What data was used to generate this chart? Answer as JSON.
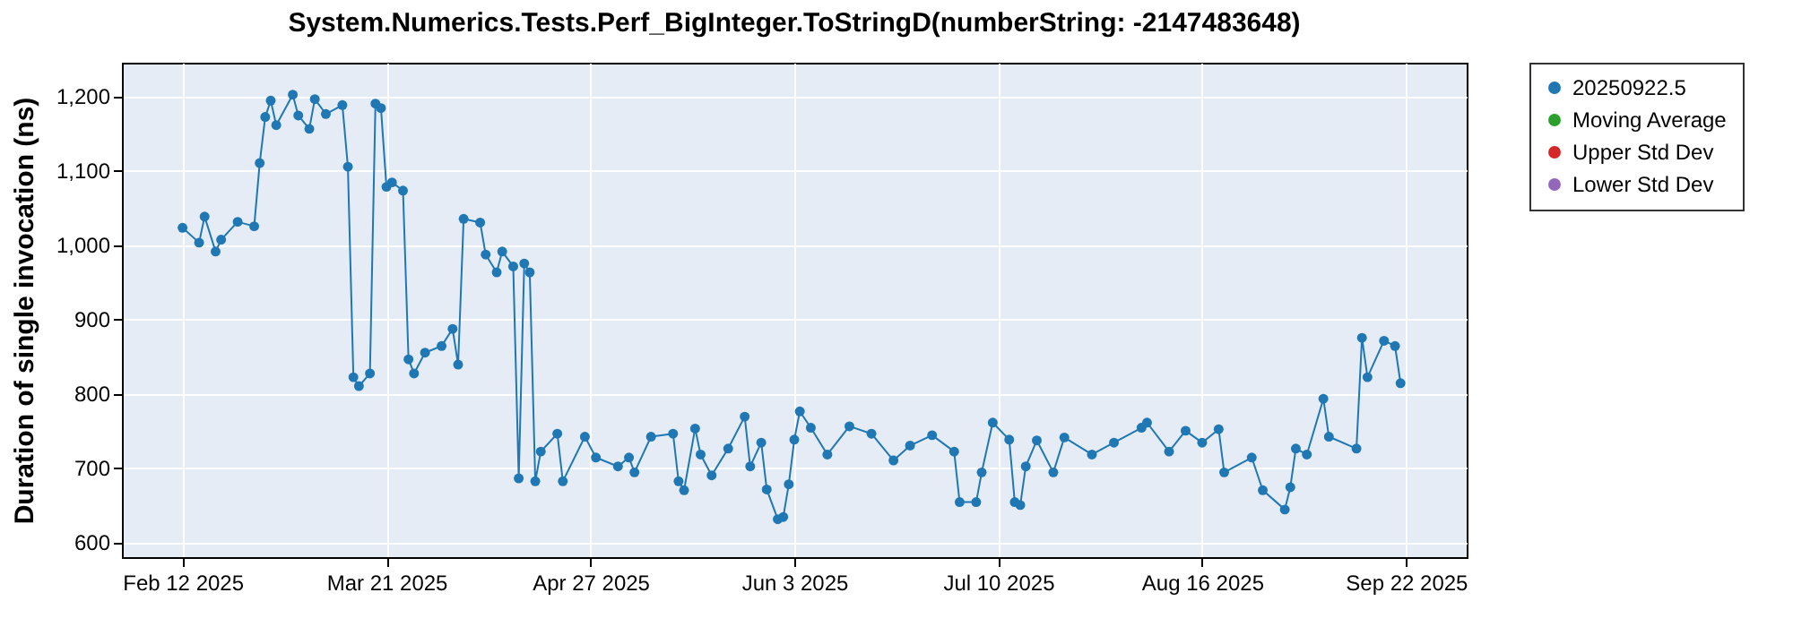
{
  "chart_data": {
    "type": "line",
    "title": "System.Numerics.Tests.Perf_BigInteger.ToStringD(numberString: -2147483648)",
    "ylabel": "Duration of single invocation (ns)",
    "x": [
      "2025-02-12",
      "2025-02-15",
      "2025-02-16",
      "2025-02-18",
      "2025-02-19",
      "2025-02-22",
      "2025-02-25",
      "2025-02-26",
      "2025-02-27",
      "2025-02-28",
      "2025-03-01",
      "2025-03-04",
      "2025-03-05",
      "2025-03-07",
      "2025-03-08",
      "2025-03-10",
      "2025-03-13",
      "2025-03-14",
      "2025-03-15",
      "2025-03-16",
      "2025-03-18",
      "2025-03-19",
      "2025-03-20",
      "2025-03-21",
      "2025-03-22",
      "2025-03-24",
      "2025-03-25",
      "2025-03-26",
      "2025-03-28",
      "2025-03-31",
      "2025-04-02",
      "2025-04-03",
      "2025-04-04",
      "2025-04-07",
      "2025-04-08",
      "2025-04-10",
      "2025-04-11",
      "2025-04-13",
      "2025-04-14",
      "2025-04-15",
      "2025-04-16",
      "2025-04-17",
      "2025-04-18",
      "2025-04-21",
      "2025-04-22",
      "2025-04-26",
      "2025-04-28",
      "2025-05-02",
      "2025-05-04",
      "2025-05-05",
      "2025-05-08",
      "2025-05-12",
      "2025-05-13",
      "2025-05-14",
      "2025-05-16",
      "2025-05-17",
      "2025-05-19",
      "2025-05-22",
      "2025-05-25",
      "2025-05-26",
      "2025-05-28",
      "2025-05-29",
      "2025-05-31",
      "2025-06-01",
      "2025-06-02",
      "2025-06-03",
      "2025-06-04",
      "2025-06-06",
      "2025-06-09",
      "2025-06-13",
      "2025-06-17",
      "2025-06-21",
      "2025-06-24",
      "2025-06-28",
      "2025-07-02",
      "2025-07-03",
      "2025-07-06",
      "2025-07-07",
      "2025-07-09",
      "2025-07-12",
      "2025-07-13",
      "2025-07-14",
      "2025-07-15",
      "2025-07-17",
      "2025-07-20",
      "2025-07-22",
      "2025-07-27",
      "2025-07-31",
      "2025-08-05",
      "2025-08-06",
      "2025-08-10",
      "2025-08-13",
      "2025-08-16",
      "2025-08-19",
      "2025-08-20",
      "2025-08-25",
      "2025-08-27",
      "2025-08-31",
      "2025-09-01",
      "2025-09-02",
      "2025-09-04",
      "2025-09-07",
      "2025-09-08",
      "2025-09-13",
      "2025-09-14",
      "2025-09-15",
      "2025-09-18",
      "2025-09-20",
      "2025-09-21"
    ],
    "series": [
      {
        "name": "20250922.5",
        "color": "#1f77b4",
        "values": [
          1023,
          1003,
          1038,
          991,
          1007,
          1031,
          1025,
          1110,
          1172,
          1194,
          1161,
          1202,
          1174,
          1156,
          1196,
          1176,
          1188,
          1105,
          822,
          810,
          827,
          1190,
          1184,
          1078,
          1084,
          1073,
          846,
          827,
          855,
          864,
          887,
          839,
          1035,
          1030,
          987,
          963,
          991,
          971,
          686,
          975,
          963,
          682,
          722,
          746,
          682,
          742,
          714,
          702,
          714,
          694,
          742,
          746,
          682,
          670,
          753,
          718,
          690,
          726,
          769,
          702,
          734,
          671,
          631,
          634,
          678,
          738,
          776,
          754,
          718,
          756,
          746,
          710,
          730,
          744,
          722,
          654,
          654,
          694,
          761,
          738,
          654,
          650,
          702,
          737,
          694,
          741,
          718,
          734,
          754,
          761,
          722,
          750,
          734,
          752,
          694,
          714,
          670,
          644,
          674,
          726,
          718,
          793,
          742,
          726,
          875,
          822,
          871,
          864,
          814
        ]
      },
      {
        "name": "Moving Average",
        "color": "#2ca02c",
        "values": [
          null,
          null,
          null,
          null,
          null,
          null,
          null,
          null,
          null,
          null,
          null,
          null,
          null,
          null,
          null,
          null,
          null,
          null,
          null,
          null,
          null,
          null,
          null,
          null,
          null,
          null,
          null,
          null,
          null,
          null,
          null,
          null,
          null,
          null,
          null,
          null,
          null,
          null,
          null,
          null,
          null,
          null,
          null,
          null,
          null,
          null,
          null,
          null,
          null,
          null,
          null,
          null,
          null,
          null,
          null,
          null,
          null,
          null,
          null,
          null,
          null,
          null,
          null,
          null,
          null,
          null,
          null,
          null,
          null,
          null,
          null,
          null,
          null,
          null,
          null,
          null,
          null,
          null,
          null,
          null,
          null,
          null,
          null,
          null,
          null,
          null,
          null,
          null,
          null,
          null,
          null,
          null,
          null,
          null,
          null,
          null,
          null,
          null,
          null,
          null,
          null,
          null,
          null,
          null,
          null,
          null,
          null,
          null,
          null
        ]
      },
      {
        "name": "Upper Std Dev",
        "color": "#d62728",
        "values": [
          null,
          null,
          null,
          null,
          null,
          null,
          null,
          null,
          null,
          null,
          null,
          null,
          null,
          null,
          null,
          null,
          null,
          null,
          null,
          null,
          null,
          null,
          null,
          null,
          null,
          null,
          null,
          null,
          null,
          null,
          null,
          null,
          null,
          null,
          null,
          null,
          null,
          null,
          null,
          null,
          null,
          null,
          null,
          null,
          null,
          null,
          null,
          null,
          null,
          null,
          null,
          null,
          null,
          null,
          null,
          null,
          null,
          null,
          null,
          null,
          null,
          null,
          null,
          null,
          null,
          null,
          null,
          null,
          null,
          null,
          null,
          null,
          null,
          null,
          null,
          null,
          null,
          null,
          null,
          null,
          null,
          null,
          null,
          null,
          null,
          null,
          null,
          null,
          null,
          null,
          null,
          null,
          null,
          null,
          null,
          null,
          null,
          null,
          null,
          null,
          null,
          null,
          null,
          null,
          null,
          null,
          null,
          null,
          null
        ]
      },
      {
        "name": "Lower Std Dev",
        "color": "#9467bd",
        "values": [
          null,
          null,
          null,
          null,
          null,
          null,
          null,
          null,
          null,
          null,
          null,
          null,
          null,
          null,
          null,
          null,
          null,
          null,
          null,
          null,
          null,
          null,
          null,
          null,
          null,
          null,
          null,
          null,
          null,
          null,
          null,
          null,
          null,
          null,
          null,
          null,
          null,
          null,
          null,
          null,
          null,
          null,
          null,
          null,
          null,
          null,
          null,
          null,
          null,
          null,
          null,
          null,
          null,
          null,
          null,
          null,
          null,
          null,
          null,
          null,
          null,
          null,
          null,
          null,
          null,
          null,
          null,
          null,
          null,
          null,
          null,
          null,
          null,
          null,
          null,
          null,
          null,
          null,
          null,
          null,
          null,
          null,
          null,
          null,
          null,
          null,
          null,
          null,
          null,
          null,
          null,
          null,
          null,
          null,
          null,
          null,
          null,
          null,
          null,
          null,
          null,
          null,
          null,
          null,
          null,
          null,
          null,
          null,
          null
        ]
      }
    ],
    "xlim": [
      "2025-02-01",
      "2025-10-03"
    ],
    "xticks": [
      {
        "value": "2025-02-12",
        "label": "Feb 12 2025"
      },
      {
        "value": "2025-03-21",
        "label": "Mar 21 2025"
      },
      {
        "value": "2025-04-27",
        "label": "Apr 27 2025"
      },
      {
        "value": "2025-06-03",
        "label": "Jun 3 2025"
      },
      {
        "value": "2025-07-10",
        "label": "Jul 10 2025"
      },
      {
        "value": "2025-08-16",
        "label": "Aug 16 2025"
      },
      {
        "value": "2025-09-22",
        "label": "Sep 22 2025"
      }
    ],
    "ylim": [
      580,
      1245
    ],
    "yticks": [
      600,
      700,
      800,
      900,
      {
        "value": 1000,
        "label": "1,000"
      },
      {
        "value": 1100,
        "label": "1,100"
      },
      {
        "value": 1200,
        "label": "1,200"
      }
    ],
    "grid": true,
    "legend": "right",
    "marker": "circle",
    "line_style": "solid"
  }
}
